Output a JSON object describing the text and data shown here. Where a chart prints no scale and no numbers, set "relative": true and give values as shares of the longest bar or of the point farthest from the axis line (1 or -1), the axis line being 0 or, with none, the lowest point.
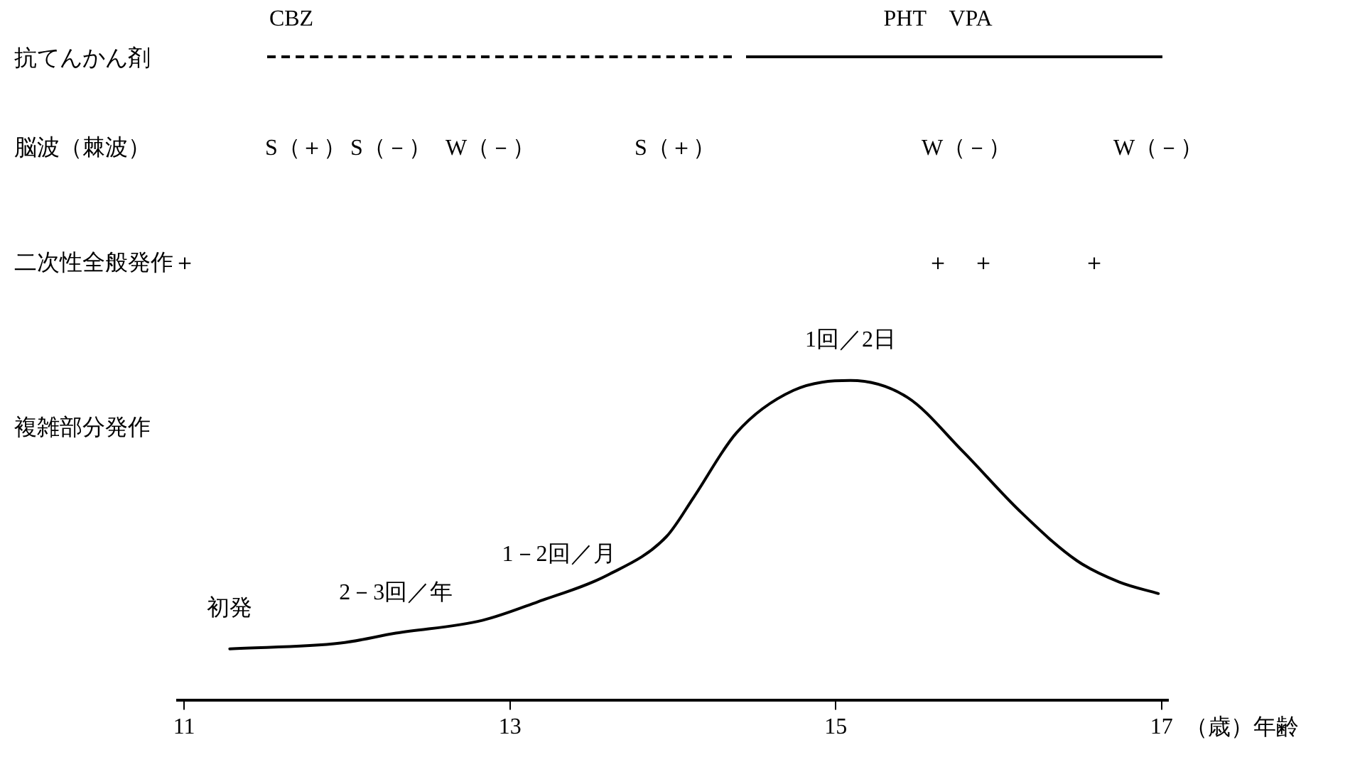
{
  "chart_data": {
    "type": "line",
    "relative": true,
    "xlabel": "（歳）年齢",
    "x": [
      11.28,
      11.96,
      12.3,
      12.83,
      13.17,
      13.6,
      13.96,
      14.13,
      14.39,
      14.74,
      15.09,
      15.44,
      15.78,
      16.13,
      16.48,
      16.74,
      16.98
    ],
    "series": [
      {
        "color": "#000000",
        "values": [
          0.16,
          0.178,
          0.209,
          0.249,
          0.307,
          0.391,
          0.511,
          0.636,
          0.836,
          0.969,
          1,
          0.947,
          0.778,
          0.591,
          0.436,
          0.369,
          0.333
        ]
      }
    ],
    "xlim": [
      10.96,
      17.04
    ],
    "xticks": [
      11,
      13,
      15,
      17
    ],
    "grid": false,
    "legend": false,
    "marker": "none",
    "line_style": "solid",
    "annotations": [
      "CBZ",
      "PHT　VPA",
      "抗てんかん剤",
      "脳波（棘波）",
      "二次性全般発作＋",
      "複雑部分発作",
      "S（＋）",
      "S（－）",
      "W（－）",
      "S（＋）",
      "W（－）",
      "W（－）",
      "＋",
      "＋",
      "＋",
      {
        "text": "1回／2日",
        "x": 15.09,
        "y": 1
      },
      {
        "text": "1－2回／月",
        "x": 13.3,
        "y": 0.33
      },
      {
        "text": "2－3回／年",
        "x": 12.3,
        "y": 0.209
      },
      {
        "text": "初発",
        "x": 11.28,
        "y": 0.16
      }
    ]
  }
}
